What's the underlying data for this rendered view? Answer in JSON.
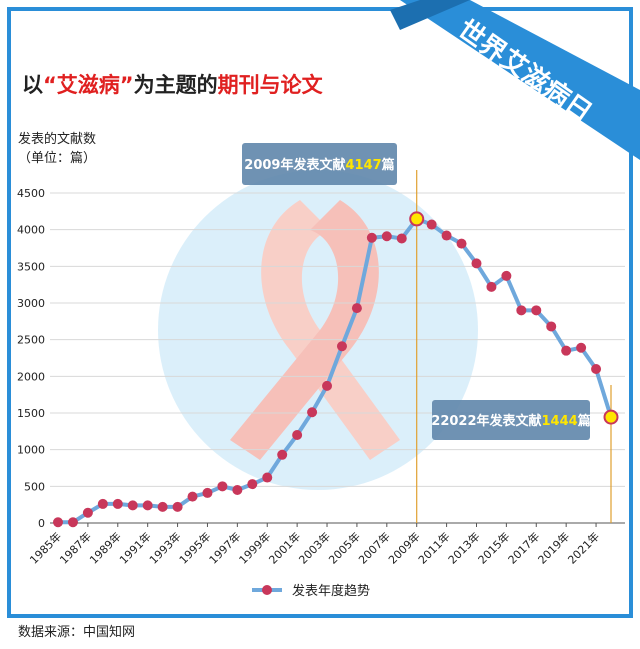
{
  "chart_data": {
    "type": "line",
    "title": [
      "以",
      "“艾滋病”",
      "为主题的",
      "期刊与论文"
    ],
    "banner": "世界艾滋病日",
    "y_label": [
      "发表的文献数",
      "（单位：篇）"
    ],
    "categories": [
      "1985年",
      null,
      "1987年",
      null,
      "1989年",
      null,
      "1991年",
      null,
      "1993年",
      null,
      "1995年",
      null,
      "1997年",
      null,
      "1999年",
      null,
      "2001年",
      null,
      "2003年",
      null,
      "2005年",
      null,
      "2007年",
      null,
      "2009年",
      null,
      "2011年",
      null,
      "2013年",
      null,
      "2015年",
      null,
      "2017年",
      null,
      "2019年",
      null,
      "2021年",
      null
    ],
    "series": [
      {
        "name": "发表年度趋势",
        "color": "#6fa8dc",
        "marker_color": "#c8375a",
        "values": [
          10,
          10,
          140,
          260,
          260,
          240,
          240,
          220,
          220,
          360,
          410,
          500,
          450,
          530,
          620,
          930,
          1200,
          1510,
          1870,
          2410,
          2930,
          3890,
          3910,
          3880,
          4147,
          4070,
          3920,
          3810,
          3540,
          3220,
          3370,
          2900,
          2900,
          2680,
          2350,
          2390,
          2100,
          1444
        ]
      }
    ],
    "highlight": [
      24,
      37
    ],
    "annotations": [
      [
        "2009年发表文献",
        "4147",
        "篇"
      ],
      [
        "22022年发表文献",
        "1444",
        "篇"
      ]
    ],
    "ylim": [
      0,
      4500
    ],
    "yticks": [
      0,
      500,
      1000,
      1500,
      2000,
      2500,
      3000,
      3500,
      4000,
      4500
    ],
    "grid": true,
    "source": "数据来源：中国知网"
  }
}
